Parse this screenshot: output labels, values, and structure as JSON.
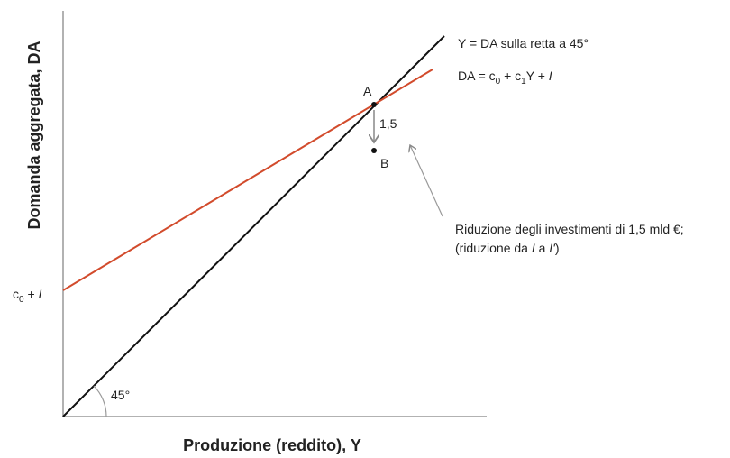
{
  "axes": {
    "y_label": "Domanda aggregata, DA",
    "x_label": "Produzione (reddito), Y",
    "y_intercept": [
      "c",
      "0",
      " + ",
      "I"
    ],
    "angle": "45°"
  },
  "lines": [
    {
      "label": "Y = DA sulla retta a 45°"
    },
    {
      "label": [
        "DA = c",
        "0",
        " + c",
        "1",
        "Y + ",
        "I"
      ]
    }
  ],
  "points": [
    {
      "label": "A"
    },
    {
      "label": "B"
    }
  ],
  "shift": {
    "label": "1,5"
  },
  "annotation": {
    "line1": "Riduzione degli investimenti di 1,5 mld €;",
    "line2": [
      "(riduzione da ",
      "I",
      " a ",
      "I'",
      ")"
    ]
  }
}
